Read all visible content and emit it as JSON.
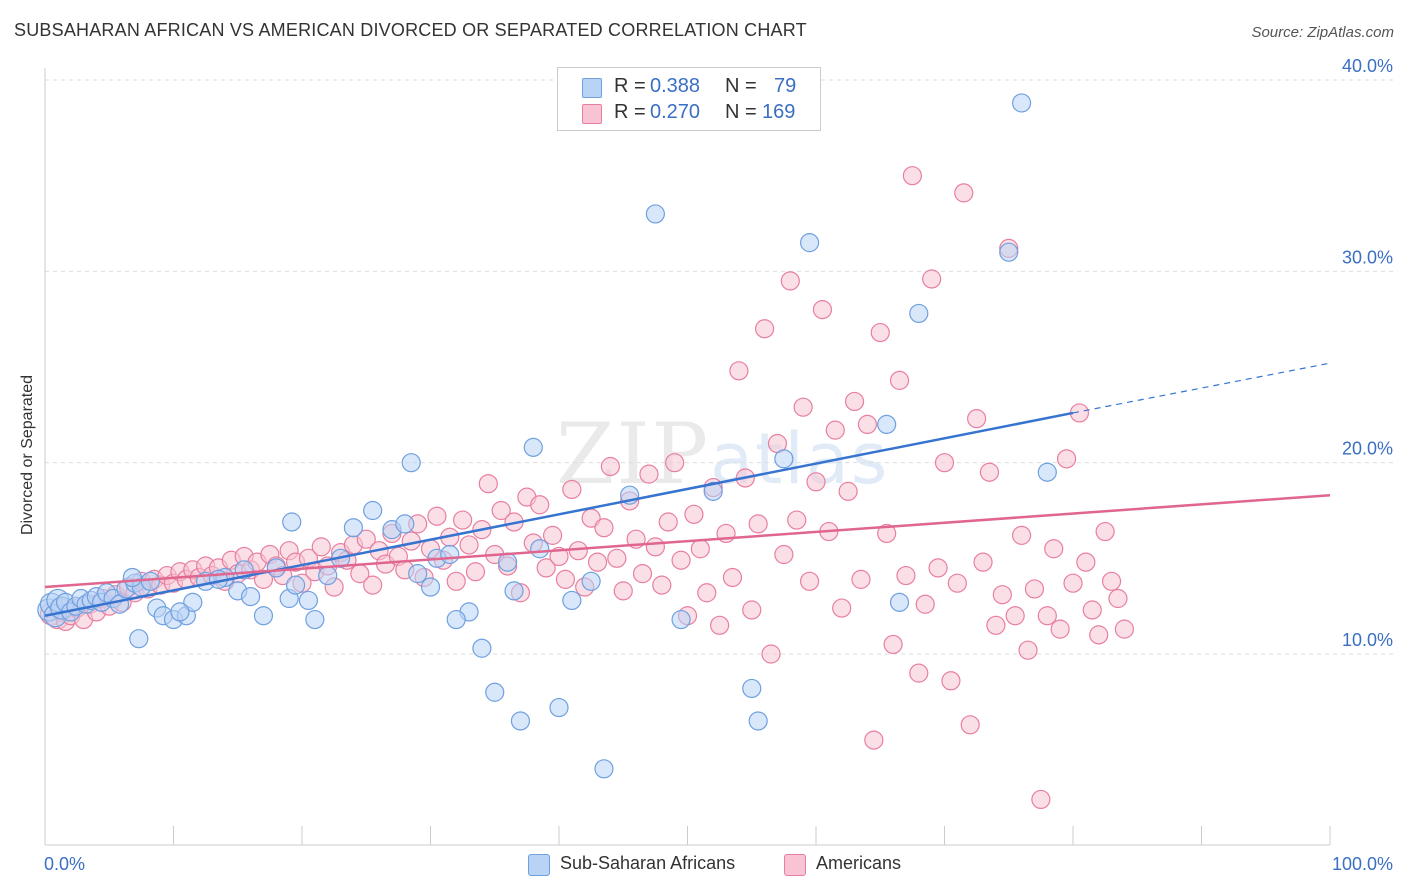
{
  "title": "SUBSAHARAN AFRICAN VS AMERICAN DIVORCED OR SEPARATED CORRELATION CHART",
  "source": "Source: ZipAtlas.com",
  "watermark": {
    "zip": "ZIP",
    "atlas": "atlas"
  },
  "stats": [
    {
      "r_label": "R =",
      "r_value": "0.388",
      "n_label": "N =",
      "n_value": "79",
      "color": "#6fa0e0",
      "fill": "#b9d3f5"
    },
    {
      "r_label": "R =",
      "r_value": "0.270",
      "n_label": "N =",
      "n_value": "169",
      "color": "#e87fa0",
      "fill": "#f8c4d4"
    }
  ],
  "chart_data": {
    "type": "scatter",
    "ylabel": "Divorced or Separated",
    "xlim": [
      0,
      100
    ],
    "ylim": [
      0,
      40
    ],
    "x_tick_labels": [
      "0.0%",
      "100.0%"
    ],
    "y_ticks": [
      10,
      20,
      30,
      40
    ],
    "y_tick_labels": [
      "10.0%",
      "20.0%",
      "30.0%",
      "40.0%"
    ],
    "grid": "horizontal dashed",
    "legend": "bottom",
    "series": [
      {
        "name": "Sub-Saharan Africans",
        "color": "#6fa0e0",
        "fill": "#b9d3f5",
        "trend": {
          "x0": 0,
          "y0": 12.0,
          "x1": 80,
          "y1": 22.6,
          "dash_to_x": 100,
          "dash_to_y": 25.2,
          "color": "#3674d0"
        },
        "points": [
          [
            0.3,
            12.3
          ],
          [
            0.5,
            12.6
          ],
          [
            0.8,
            12.0
          ],
          [
            1.0,
            12.8
          ],
          [
            1.3,
            12.4
          ],
          [
            1.6,
            12.7
          ],
          [
            2.0,
            12.2
          ],
          [
            2.4,
            12.5
          ],
          [
            2.8,
            12.9
          ],
          [
            3.2,
            12.6
          ],
          [
            3.6,
            12.8
          ],
          [
            4.0,
            13.0
          ],
          [
            4.4,
            12.7
          ],
          [
            4.8,
            13.2
          ],
          [
            5.3,
            12.9
          ],
          [
            5.8,
            12.6
          ],
          [
            6.3,
            13.4
          ],
          [
            7.0,
            13.7
          ],
          [
            7.5,
            13.5
          ],
          [
            8.2,
            13.8
          ],
          [
            8.7,
            12.4
          ],
          [
            9.2,
            12.0
          ],
          [
            10.0,
            11.8
          ],
          [
            11.0,
            12.0
          ],
          [
            11.5,
            12.7
          ],
          [
            12.5,
            13.8
          ],
          [
            14.0,
            14.0
          ],
          [
            15.0,
            13.3
          ],
          [
            16.0,
            13.0
          ],
          [
            17.0,
            12.0
          ],
          [
            18.0,
            14.5
          ],
          [
            19.0,
            12.9
          ],
          [
            19.5,
            13.6
          ],
          [
            20.5,
            12.8
          ],
          [
            21.0,
            11.8
          ],
          [
            22.0,
            14.1
          ],
          [
            23.0,
            15.0
          ],
          [
            24.0,
            16.6
          ],
          [
            25.5,
            17.5
          ],
          [
            27.0,
            16.5
          ],
          [
            28.0,
            16.8
          ],
          [
            29.0,
            14.2
          ],
          [
            30.0,
            13.5
          ],
          [
            30.5,
            15.0
          ],
          [
            31.5,
            15.2
          ],
          [
            33.0,
            12.2
          ],
          [
            34.0,
            10.3
          ],
          [
            35.0,
            8.0
          ],
          [
            36.0,
            14.8
          ],
          [
            37.0,
            6.5
          ],
          [
            38.0,
            20.8
          ],
          [
            38.5,
            15.5
          ],
          [
            40.0,
            7.2
          ],
          [
            41.0,
            12.8
          ],
          [
            42.5,
            13.8
          ],
          [
            43.5,
            4.0
          ],
          [
            45.5,
            18.3
          ],
          [
            47.5,
            33.0
          ],
          [
            49.5,
            11.8
          ],
          [
            52.0,
            18.5
          ],
          [
            55.0,
            8.2
          ],
          [
            55.5,
            6.5
          ],
          [
            57.5,
            20.2
          ],
          [
            59.5,
            31.5
          ],
          [
            65.5,
            22.0
          ],
          [
            66.5,
            12.7
          ],
          [
            68.0,
            27.8
          ],
          [
            75.0,
            31.0
          ],
          [
            76.0,
            38.8
          ],
          [
            78.0,
            19.5
          ],
          [
            6.8,
            14.0
          ],
          [
            7.3,
            10.8
          ],
          [
            10.5,
            12.2
          ],
          [
            13.5,
            13.9
          ],
          [
            15.5,
            14.4
          ],
          [
            19.2,
            16.9
          ],
          [
            28.5,
            20.0
          ],
          [
            32.0,
            11.8
          ],
          [
            36.5,
            13.3
          ]
        ]
      },
      {
        "name": "Americans",
        "color": "#e87fa0",
        "fill": "#f8c4d4",
        "trend": {
          "x0": 0,
          "y0": 13.5,
          "x1": 100,
          "y1": 18.3,
          "color": "#e0658f"
        },
        "points": [
          [
            0.5,
            12.1
          ],
          [
            1.0,
            11.9
          ],
          [
            1.3,
            12.3
          ],
          [
            1.6,
            11.7
          ],
          [
            2.0,
            12.0
          ],
          [
            2.5,
            12.4
          ],
          [
            3.0,
            11.8
          ],
          [
            3.5,
            12.6
          ],
          [
            4.0,
            12.2
          ],
          [
            4.5,
            12.9
          ],
          [
            5.0,
            12.5
          ],
          [
            5.5,
            13.1
          ],
          [
            6.0,
            12.7
          ],
          [
            6.5,
            13.5
          ],
          [
            7.0,
            13.2
          ],
          [
            7.5,
            13.8
          ],
          [
            8.0,
            13.4
          ],
          [
            8.5,
            13.9
          ],
          [
            9.0,
            13.6
          ],
          [
            9.5,
            14.1
          ],
          [
            10.0,
            13.7
          ],
          [
            10.5,
            14.3
          ],
          [
            11.0,
            13.9
          ],
          [
            11.5,
            14.4
          ],
          [
            12.0,
            14.0
          ],
          [
            12.5,
            14.6
          ],
          [
            13.0,
            14.1
          ],
          [
            13.5,
            14.5
          ],
          [
            14.0,
            13.8
          ],
          [
            14.5,
            14.9
          ],
          [
            15.0,
            14.2
          ],
          [
            15.5,
            15.1
          ],
          [
            16.0,
            14.4
          ],
          [
            16.5,
            14.8
          ],
          [
            17.0,
            13.9
          ],
          [
            17.5,
            15.2
          ],
          [
            18.0,
            14.6
          ],
          [
            18.5,
            14.1
          ],
          [
            19.0,
            15.4
          ],
          [
            19.5,
            14.8
          ],
          [
            20.0,
            13.7
          ],
          [
            20.5,
            15.0
          ],
          [
            21.0,
            14.3
          ],
          [
            21.5,
            15.6
          ],
          [
            22.0,
            14.6
          ],
          [
            22.5,
            13.5
          ],
          [
            23.0,
            15.3
          ],
          [
            23.5,
            14.9
          ],
          [
            24.0,
            15.7
          ],
          [
            24.5,
            14.2
          ],
          [
            25.0,
            16.0
          ],
          [
            25.5,
            13.6
          ],
          [
            26.0,
            15.4
          ],
          [
            26.5,
            14.7
          ],
          [
            27.0,
            16.3
          ],
          [
            27.5,
            15.1
          ],
          [
            28.0,
            14.4
          ],
          [
            28.5,
            15.9
          ],
          [
            29.0,
            16.8
          ],
          [
            29.5,
            14.0
          ],
          [
            30.0,
            15.5
          ],
          [
            30.5,
            17.2
          ],
          [
            31.0,
            14.9
          ],
          [
            31.5,
            16.1
          ],
          [
            32.0,
            13.8
          ],
          [
            32.5,
            17.0
          ],
          [
            33.0,
            15.7
          ],
          [
            33.5,
            14.3
          ],
          [
            34.0,
            16.5
          ],
          [
            34.5,
            18.9
          ],
          [
            35.0,
            15.2
          ],
          [
            35.5,
            17.5
          ],
          [
            36.0,
            14.6
          ],
          [
            36.5,
            16.9
          ],
          [
            37.0,
            13.2
          ],
          [
            37.5,
            18.2
          ],
          [
            38.0,
            15.8
          ],
          [
            38.5,
            17.8
          ],
          [
            39.0,
            14.5
          ],
          [
            39.5,
            16.2
          ],
          [
            40.0,
            15.1
          ],
          [
            40.5,
            13.9
          ],
          [
            41.0,
            18.6
          ],
          [
            41.5,
            15.4
          ],
          [
            42.0,
            13.5
          ],
          [
            42.5,
            17.1
          ],
          [
            43.0,
            14.8
          ],
          [
            43.5,
            16.6
          ],
          [
            44.0,
            19.8
          ],
          [
            44.5,
            15.0
          ],
          [
            45.0,
            13.3
          ],
          [
            45.5,
            18.0
          ],
          [
            46.0,
            16.0
          ],
          [
            46.5,
            14.2
          ],
          [
            47.0,
            19.4
          ],
          [
            47.5,
            15.6
          ],
          [
            48.0,
            13.6
          ],
          [
            48.5,
            16.9
          ],
          [
            49.0,
            20.0
          ],
          [
            49.5,
            14.9
          ],
          [
            50.0,
            12.0
          ],
          [
            50.5,
            17.3
          ],
          [
            51.0,
            15.5
          ],
          [
            51.5,
            13.2
          ],
          [
            52.0,
            18.7
          ],
          [
            52.5,
            11.5
          ],
          [
            53.0,
            16.3
          ],
          [
            53.5,
            14.0
          ],
          [
            54.0,
            24.8
          ],
          [
            54.5,
            19.2
          ],
          [
            55.0,
            12.3
          ],
          [
            55.5,
            16.8
          ],
          [
            56.0,
            27.0
          ],
          [
            56.5,
            10.0
          ],
          [
            57.0,
            21.0
          ],
          [
            57.5,
            15.2
          ],
          [
            58.0,
            29.5
          ],
          [
            58.5,
            17.0
          ],
          [
            59.0,
            22.9
          ],
          [
            59.5,
            13.8
          ],
          [
            60.0,
            19.0
          ],
          [
            60.5,
            28.0
          ],
          [
            61.0,
            16.4
          ],
          [
            61.5,
            21.7
          ],
          [
            62.0,
            12.4
          ],
          [
            62.5,
            18.5
          ],
          [
            63.0,
            23.2
          ],
          [
            63.5,
            13.9
          ],
          [
            64.0,
            22.0
          ],
          [
            64.5,
            5.5
          ],
          [
            65.0,
            26.8
          ],
          [
            65.5,
            16.3
          ],
          [
            66.0,
            10.5
          ],
          [
            66.5,
            24.3
          ],
          [
            67.0,
            14.1
          ],
          [
            67.5,
            35.0
          ],
          [
            68.0,
            9.0
          ],
          [
            68.5,
            12.6
          ],
          [
            69.0,
            29.6
          ],
          [
            69.5,
            14.5
          ],
          [
            70.0,
            20.0
          ],
          [
            70.5,
            8.6
          ],
          [
            71.0,
            13.7
          ],
          [
            71.5,
            34.1
          ],
          [
            72.0,
            6.3
          ],
          [
            72.5,
            22.3
          ],
          [
            73.0,
            14.8
          ],
          [
            73.5,
            19.5
          ],
          [
            74.0,
            11.5
          ],
          [
            74.5,
            13.1
          ],
          [
            75.0,
            31.2
          ],
          [
            75.5,
            12.0
          ],
          [
            76.0,
            16.2
          ],
          [
            76.5,
            10.2
          ],
          [
            77.0,
            13.4
          ],
          [
            77.5,
            2.4
          ],
          [
            78.0,
            12.0
          ],
          [
            78.5,
            15.5
          ],
          [
            79.0,
            11.3
          ],
          [
            79.5,
            20.2
          ],
          [
            80.0,
            13.7
          ],
          [
            80.5,
            22.6
          ],
          [
            81.0,
            14.8
          ],
          [
            81.5,
            12.3
          ],
          [
            82.0,
            11.0
          ],
          [
            82.5,
            16.4
          ],
          [
            83.0,
            13.8
          ],
          [
            83.5,
            12.9
          ],
          [
            84.0,
            11.3
          ]
        ]
      }
    ]
  }
}
